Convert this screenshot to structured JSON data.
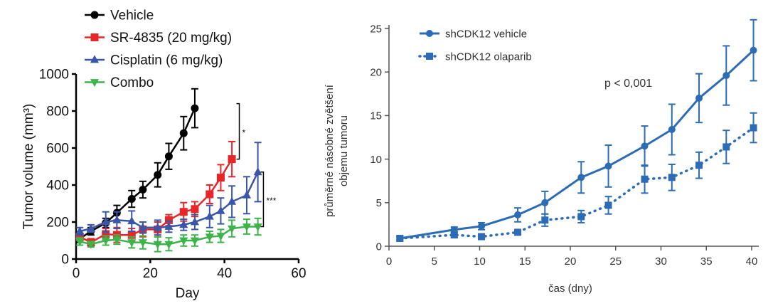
{
  "chart_data": [
    {
      "type": "line",
      "xlabel": "Day",
      "ylabel": "Tumor volume (mm³)",
      "xlim": [
        0,
        60
      ],
      "ylim": [
        0,
        1000
      ],
      "xticks": [
        "0",
        "20",
        "40",
        "60"
      ],
      "yticks": [
        "0",
        "200",
        "400",
        "600",
        "800",
        "1000"
      ],
      "legend_position": "top-left",
      "grid": false,
      "annotations": [
        "*",
        "***"
      ],
      "series": [
        {
          "name": "Vehicle",
          "color": "#000000",
          "marker": "circle",
          "x": [
            1,
            4,
            8,
            11,
            15,
            18,
            22,
            25,
            29,
            32
          ],
          "y": [
            110,
            150,
            195,
            250,
            325,
            375,
            455,
            555,
            680,
            815
          ],
          "err": [
            20,
            20,
            25,
            40,
            45,
            45,
            65,
            70,
            90,
            105
          ]
        },
        {
          "name": "SR-4835 (20 mg/kg)",
          "color": "#e8262a",
          "marker": "square",
          "x": [
            1,
            4,
            8,
            11,
            15,
            18,
            22,
            25,
            29,
            32,
            36,
            39,
            42
          ],
          "y": [
            120,
            90,
            135,
            130,
            130,
            160,
            160,
            210,
            255,
            270,
            350,
            440,
            540
          ],
          "err": [
            20,
            20,
            30,
            40,
            35,
            40,
            40,
            30,
            50,
            40,
            50,
            70,
            95
          ]
        },
        {
          "name": "Cisplatin (6 mg/kg)",
          "color": "#3a56a8",
          "marker": "triangle-up",
          "x": [
            1,
            4,
            8,
            11,
            15,
            18,
            22,
            25,
            29,
            32,
            36,
            39,
            42,
            46,
            49
          ],
          "y": [
            150,
            165,
            200,
            210,
            205,
            170,
            170,
            175,
            185,
            200,
            230,
            260,
            310,
            345,
            470
          ],
          "err": [
            20,
            20,
            55,
            45,
            55,
            30,
            40,
            30,
            30,
            40,
            60,
            70,
            85,
            100,
            160
          ]
        },
        {
          "name": "Combo",
          "color": "#3cb44a",
          "marker": "triangle-down",
          "x": [
            1,
            4,
            8,
            11,
            15,
            18,
            22,
            25,
            29,
            32,
            36,
            39,
            42,
            46,
            49
          ],
          "y": [
            95,
            80,
            100,
            105,
            90,
            90,
            80,
            80,
            100,
            100,
            120,
            125,
            165,
            175,
            175
          ],
          "err": [
            20,
            15,
            25,
            25,
            30,
            35,
            40,
            35,
            30,
            30,
            30,
            35,
            45,
            40,
            45
          ]
        }
      ]
    },
    {
      "type": "line",
      "xlabel": "čas (dny)",
      "ylabel": [
        "průměrné násobné zvětšení",
        "objemu tumoru"
      ],
      "xlim": [
        0,
        40
      ],
      "ylim": [
        0,
        25
      ],
      "xticks": [
        "0",
        "5",
        "10",
        "15",
        "20",
        "25",
        "30",
        "35",
        "40"
      ],
      "yticks": [
        "0",
        "5",
        "10",
        "15",
        "20",
        "25"
      ],
      "legend_position": "top-left",
      "grid": false,
      "annotations": [
        "p < 0,001"
      ],
      "series": [
        {
          "name": "shCDK12 vehicle",
          "color": "#2b6cb5",
          "marker": "circle",
          "line": "solid",
          "x": [
            1.2,
            7.2,
            10.2,
            14.2,
            17.2,
            21.2,
            24.2,
            28.2,
            31.2,
            34.2,
            37.2,
            40.2
          ],
          "y": [
            0.9,
            1.9,
            2.3,
            3.6,
            5.0,
            7.9,
            9.2,
            11.5,
            13.4,
            17.0,
            19.6,
            22.5
          ],
          "err": [
            0.2,
            0.3,
            0.4,
            0.8,
            1.3,
            1.8,
            2.4,
            2.3,
            2.9,
            2.8,
            3.4,
            3.5
          ]
        },
        {
          "name": "shCDK12 olaparib",
          "color": "#2b6cb5",
          "marker": "square",
          "line": "dotted",
          "x": [
            1.2,
            7.2,
            10.2,
            14.2,
            17.2,
            21.2,
            24.2,
            28.2,
            31.2,
            34.2,
            37.2,
            40.2
          ],
          "y": [
            0.9,
            1.3,
            1.1,
            1.6,
            3.0,
            3.4,
            4.7,
            7.7,
            7.9,
            9.3,
            11.4,
            13.6
          ],
          "err": [
            0.2,
            0.3,
            0.2,
            0.2,
            0.7,
            0.7,
            1.0,
            1.6,
            1.5,
            1.5,
            1.9,
            1.7
          ]
        }
      ]
    }
  ]
}
